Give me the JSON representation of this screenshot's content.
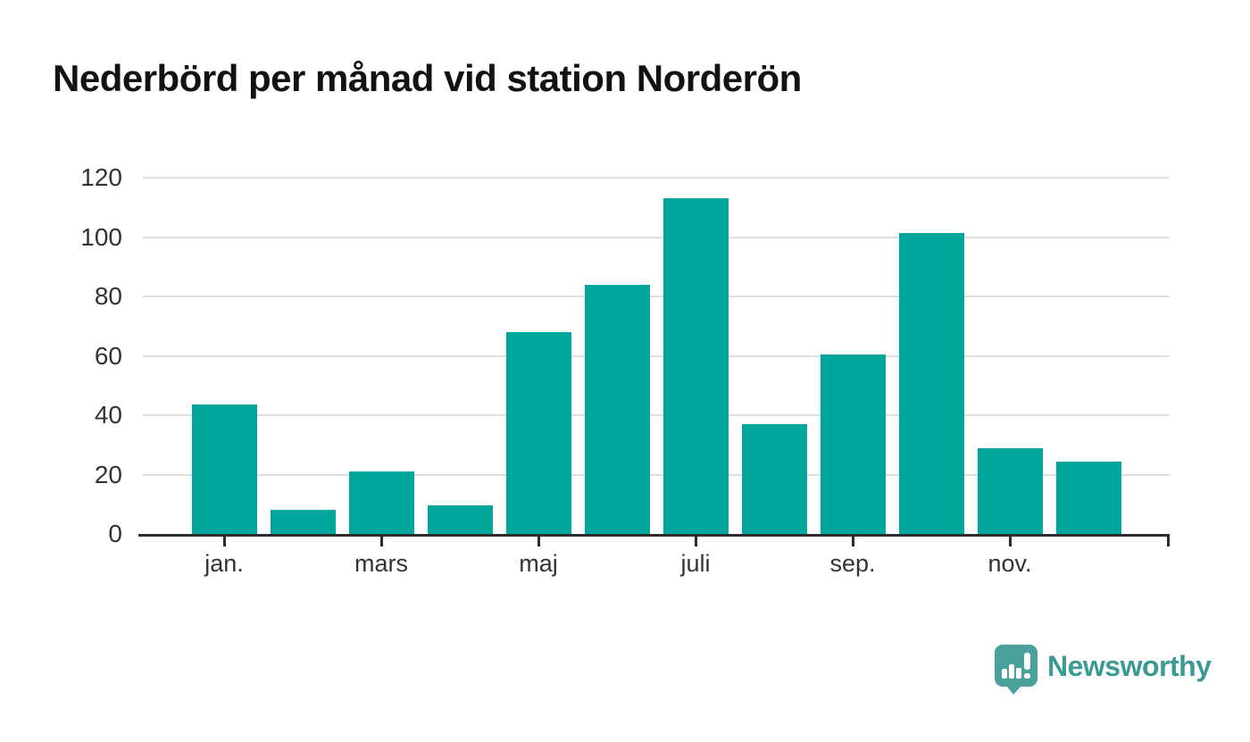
{
  "title": "Nederbörd per månad vid station Norderön",
  "chart_data": {
    "type": "bar",
    "title": "Nederbörd per månad vid station Norderön",
    "bar_count": 12,
    "values": [
      43.5,
      8,
      21,
      9.5,
      68,
      84,
      113,
      37,
      60.5,
      101.5,
      29,
      24.5
    ],
    "x_tick_labels": [
      "jan.",
      "mars",
      "maj",
      "juli",
      "sep.",
      "nov."
    ],
    "x_tick_bar_indices": [
      0,
      2,
      4,
      6,
      8,
      10
    ],
    "y_ticks": [
      0,
      20,
      40,
      60,
      80,
      100,
      120
    ],
    "ylim": [
      0,
      120
    ],
    "xlabel": "",
    "ylabel": "",
    "legend": "none",
    "grid": "horizontal",
    "bar_color": "#00a59b"
  },
  "colors": {
    "bar": "#00a59b",
    "axis": "#2d2d2d",
    "gridline": "#dedede",
    "title_text": "#121212",
    "tick_label": "#333333",
    "logo_text": "#3b9b94",
    "logo_icon_bg": "#4aa09a"
  },
  "branding": {
    "logo_text": "Newsworthy"
  }
}
